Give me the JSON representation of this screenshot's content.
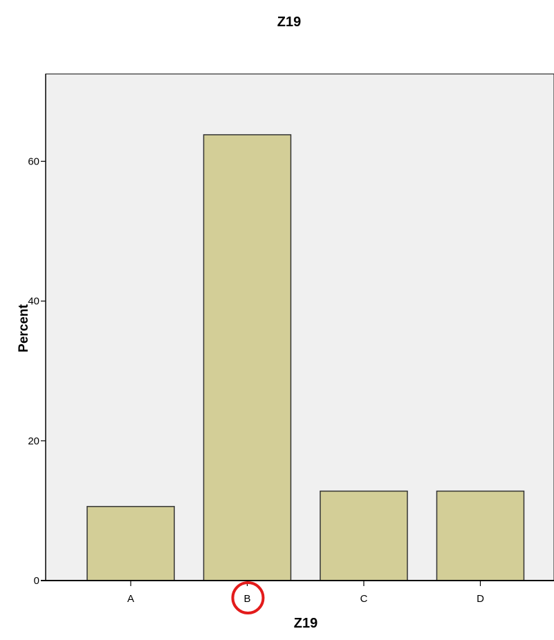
{
  "chart_data": {
    "type": "bar",
    "title": "Z19",
    "xlabel": "Z19",
    "ylabel": "Percent",
    "categories": [
      "A",
      "B",
      "C",
      "D"
    ],
    "values": [
      10.6,
      63.8,
      12.8,
      12.8
    ],
    "ylim": [
      0,
      72.5
    ],
    "yticks": [
      0,
      20,
      40,
      60
    ],
    "grid": false,
    "legend": "none",
    "highlight_category": "B"
  },
  "colors": {
    "plot_background": "#f0f0f0",
    "bar_fill": "#d3ce97",
    "bar_stroke": "#333333",
    "axis": "#000000",
    "highlight_circle": "#e31b1b"
  }
}
